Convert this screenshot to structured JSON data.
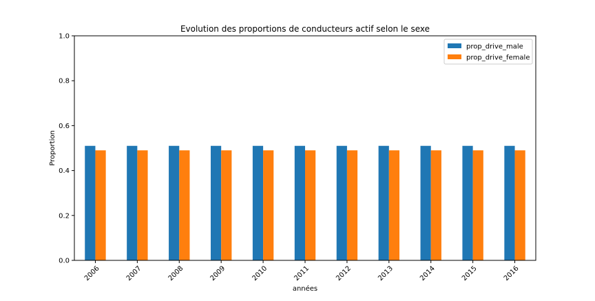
{
  "chart_data": {
    "type": "bar",
    "title": "Evolution des proportions de conducteurs actif selon le sexe",
    "xlabel": "années",
    "ylabel": "Proportion",
    "categories": [
      "2006",
      "2007",
      "2008",
      "2009",
      "2010",
      "2011",
      "2012",
      "2013",
      "2014",
      "2015",
      "2016"
    ],
    "series": [
      {
        "name": "prop_drive_male",
        "color": "#1f77b4",
        "values": [
          0.51,
          0.51,
          0.51,
          0.51,
          0.51,
          0.51,
          0.51,
          0.51,
          0.51,
          0.51,
          0.51
        ]
      },
      {
        "name": "prop_drive_female",
        "color": "#ff7f0e",
        "values": [
          0.49,
          0.49,
          0.49,
          0.49,
          0.49,
          0.49,
          0.49,
          0.49,
          0.49,
          0.49,
          0.49
        ]
      }
    ],
    "ylim": [
      0,
      1.0
    ],
    "yticks": [
      "0.0",
      "0.2",
      "0.4",
      "0.6",
      "0.8",
      "1.0"
    ],
    "grid": false,
    "legend_position": "top-right"
  }
}
